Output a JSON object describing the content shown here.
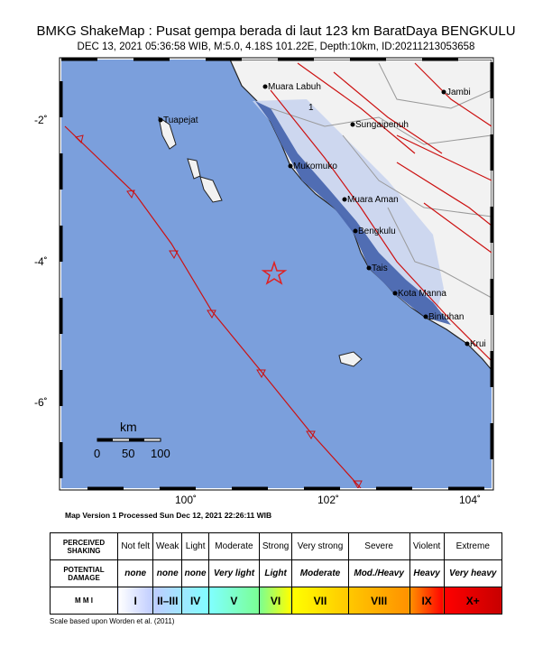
{
  "title": "BMKG ShakeMap : Pusat gempa berada di laut 123 km BaratDaya BENGKULU",
  "subtitle": "DEC 13, 2021 05:36:58 WIB, M:5.0, 4.18S 101.22E, Depth:10km, ID:20211213053658",
  "map": {
    "lat_ticks": [
      "-2˚",
      "-4˚",
      "-6˚"
    ],
    "lon_ticks": [
      "100˚",
      "102˚",
      "104˚"
    ],
    "epicenter": {
      "lat": -4.18,
      "lon": 101.22,
      "icon": "star-icon",
      "color": "#e02020"
    },
    "colors": {
      "ocean": "#7b9fdc",
      "land": "#f2f2f2",
      "shaking": "#3a5aa8",
      "fault": "#cc1111"
    },
    "cities": [
      "Muara Labuh",
      "Tuapejat",
      "Sungaipenuh",
      "Jambi",
      "Mukomuko",
      "Muara Aman",
      "Bengkulu",
      "Tais",
      "Kota Manna",
      "Bintuhan",
      "Krui"
    ],
    "contour_labels": [
      "1"
    ],
    "scale": {
      "unit": "km",
      "labels": [
        "0",
        "50",
        "100"
      ]
    }
  },
  "version": "Map Version 1 Processed Sun Dec 12, 2021 22:26:11 WIB",
  "legend": {
    "row_headers": [
      "PERCEIVED SHAKING",
      "POTENTIAL DAMAGE",
      "M M I"
    ],
    "shaking": [
      "Not felt",
      "Weak",
      "Light",
      "Moderate",
      "Strong",
      "Very strong",
      "Severe",
      "Violent",
      "Extreme"
    ],
    "damage": [
      "none",
      "none",
      "none",
      "Very light",
      "Light",
      "Moderate",
      "Mod./Heavy",
      "Heavy",
      "Very heavy"
    ],
    "mmi": [
      "I",
      "II–III",
      "IV",
      "V",
      "VI",
      "VII",
      "VIII",
      "IX",
      "X+"
    ],
    "mmi_colors": [
      "#ffffff",
      "#bfccff",
      "#a0e6ff",
      "#80ffff",
      "#7aff93",
      "#ffff00",
      "#ffc800",
      "#ff9100",
      "#ff0000",
      "#c80000"
    ]
  },
  "credit": "Scale based upon Worden et al. (2011)"
}
